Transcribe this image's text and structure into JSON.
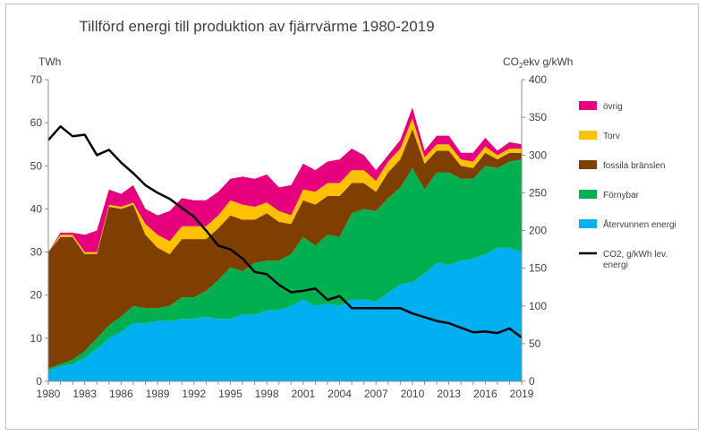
{
  "chart_data": {
    "type": "area",
    "title": "Tillförd energi till produktion av fjärrvärme 1980-2019",
    "ylabel": "TWh",
    "y2label_main": "CO",
    "y2label_sub": "2",
    "y2label_rest": "ekv g/kWh",
    "ylim": [
      0,
      70
    ],
    "y2lim": [
      0,
      400
    ],
    "xlim": [
      1980,
      2019
    ],
    "yticks": [
      "0",
      "10",
      "20",
      "30",
      "40",
      "50",
      "60",
      "70"
    ],
    "y2ticks": [
      "0",
      "50",
      "100",
      "150",
      "200",
      "250",
      "300",
      "350",
      "400"
    ],
    "xticks": [
      "1980",
      "1983",
      "1986",
      "1989",
      "1992",
      "1995",
      "1998",
      "2001",
      "2004",
      "2007",
      "2010",
      "2013",
      "2016",
      "2019"
    ],
    "x": [
      1980,
      1981,
      1982,
      1983,
      1984,
      1985,
      1986,
      1987,
      1988,
      1989,
      1990,
      1991,
      1992,
      1993,
      1994,
      1995,
      1996,
      1997,
      1998,
      1999,
      2000,
      2001,
      2002,
      2003,
      2004,
      2005,
      2006,
      2007,
      2008,
      2009,
      2010,
      2011,
      2012,
      2013,
      2014,
      2015,
      2016,
      2017,
      2018,
      2019
    ],
    "series": [
      {
        "name": "Återvunnen energi",
        "color": "#00b0f0",
        "values": [
          2.5,
          3.5,
          4,
          5.5,
          7.5,
          10,
          11.5,
          13.5,
          13.5,
          14,
          14,
          14.5,
          14.5,
          15,
          14.5,
          14.5,
          15.5,
          15.5,
          16.5,
          16.5,
          17.5,
          19,
          17.5,
          18,
          17.5,
          19,
          19,
          18.5,
          20.5,
          22.5,
          23,
          25,
          27.5,
          27,
          28,
          28.5,
          29.5,
          31,
          31,
          30
        ]
      },
      {
        "name": "Förnybar",
        "color": "#00b050",
        "values": [
          0.5,
          0.5,
          1,
          1.5,
          2.5,
          3,
          3.5,
          4,
          3.5,
          3,
          3.5,
          5,
          5,
          6,
          9,
          12,
          10,
          12,
          11.5,
          11.5,
          12,
          14.5,
          14,
          16,
          16,
          20,
          21,
          21,
          22,
          22.5,
          26.5,
          19.5,
          21,
          21.5,
          19,
          18.5,
          20.5,
          18.5,
          20,
          21.5
        ]
      },
      {
        "name": "fossila bränslen",
        "color": "#7f3f00",
        "values": [
          27,
          29.5,
          28.5,
          22.5,
          19.5,
          27.5,
          25,
          23.5,
          17,
          14,
          12,
          13.5,
          13.5,
          12,
          12,
          12,
          12,
          10,
          11,
          9,
          7,
          8.5,
          9.5,
          9,
          9.5,
          7,
          6,
          4.5,
          6,
          6.5,
          9,
          6,
          5,
          5,
          3,
          2.5,
          3,
          2,
          2,
          1.5
        ]
      },
      {
        "name": "Torv",
        "color": "#ffc000",
        "values": [
          0,
          0.5,
          0.5,
          0.5,
          0.5,
          0.5,
          0.5,
          0.5,
          2.5,
          3,
          3,
          3,
          3,
          3,
          3,
          3.5,
          3.5,
          3,
          2.5,
          2.5,
          2,
          2.5,
          3,
          3,
          3,
          3,
          3,
          2.5,
          2.5,
          2.5,
          2.5,
          1.5,
          1.5,
          1.5,
          1.5,
          1.5,
          1.5,
          1,
          1,
          1
        ]
      },
      {
        "name": "övrig",
        "color": "#e6007e",
        "values": [
          0,
          0.5,
          0.5,
          4,
          5,
          3.5,
          3,
          4,
          3.5,
          4.5,
          7,
          6.5,
          6,
          6,
          5.5,
          5,
          6.5,
          6.5,
          6.5,
          5.5,
          7,
          6,
          5,
          5,
          5.5,
          5,
          3.5,
          2.5,
          1.5,
          2,
          2.5,
          1.5,
          2,
          2,
          1.5,
          2,
          2,
          1,
          1.5,
          1
        ]
      }
    ],
    "line_series": {
      "name": "CO2, g/kWh lev. energi",
      "color": "#000000",
      "axis": "right",
      "values": [
        320,
        338,
        325,
        327,
        300,
        307,
        290,
        276,
        260,
        250,
        242,
        230,
        218,
        200,
        180,
        175,
        163,
        145,
        142,
        128,
        118,
        120,
        123,
        108,
        113,
        97,
        97,
        97,
        97,
        97,
        90,
        85,
        80,
        77,
        71,
        65,
        66,
        64,
        70,
        58
      ]
    },
    "legend": {
      "placement": "right",
      "items": [
        {
          "label": "övrig",
          "color": "#e6007e",
          "kind": "patch"
        },
        {
          "label": "Torv",
          "color": "#ffc000",
          "kind": "patch"
        },
        {
          "label": "fossila bränslen",
          "color": "#7f3f00",
          "kind": "patch"
        },
        {
          "label": "Förnybar",
          "color": "#00b050",
          "kind": "patch"
        },
        {
          "label": "Återvunnen energi",
          "color": "#00b0f0",
          "kind": "patch"
        },
        {
          "label": "CO2, g/kWh lev.",
          "label2": "energi",
          "color": "#000000",
          "kind": "line"
        }
      ]
    },
    "grid": false
  }
}
